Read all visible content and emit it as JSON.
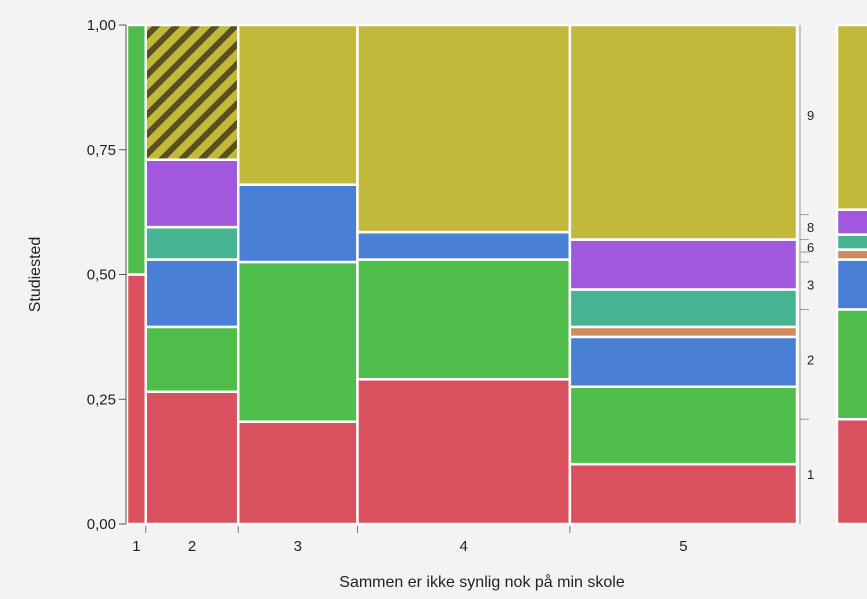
{
  "chart_data": {
    "type": "mosaic",
    "xlabel": "Sammen er ikke synlig nok på min skole",
    "ylabel": "Studiested",
    "ylim": [
      0,
      1
    ],
    "y_ticks": [
      {
        "value": 0,
        "label": "0,00"
      },
      {
        "value": 0.25,
        "label": "0,25"
      },
      {
        "value": 0.5,
        "label": "0,50"
      },
      {
        "value": 0.75,
        "label": "0,75"
      },
      {
        "value": 1,
        "label": "1,00"
      }
    ],
    "colors": {
      "1": "#d9515f",
      "2": "#4fbd4b",
      "3": "#4a7fd6",
      "4": "#cf8a5c",
      "6": "#46b393",
      "8": "#a258dc",
      "9": "#c2b83a",
      "hatch": "#574f1f"
    },
    "columns": [
      {
        "label": "1",
        "width": 0.028,
        "segments": [
          {
            "group": "1",
            "value": 0.5
          },
          {
            "group": "2",
            "value": 0.5
          }
        ]
      },
      {
        "label": "2",
        "width": 0.138,
        "segments": [
          {
            "group": "1",
            "value": 0.265
          },
          {
            "group": "2",
            "value": 0.13
          },
          {
            "group": "3",
            "value": 0.135
          },
          {
            "group": "6",
            "value": 0.065
          },
          {
            "group": "8",
            "value": 0.135
          },
          {
            "group": "9",
            "value": 0.27,
            "hatched": true
          }
        ]
      },
      {
        "label": "3",
        "width": 0.178,
        "segments": [
          {
            "group": "1",
            "value": 0.205
          },
          {
            "group": "2",
            "value": 0.32
          },
          {
            "group": "3",
            "value": 0.155
          },
          {
            "group": "9",
            "value": 0.32
          }
        ]
      },
      {
        "label": "4",
        "width": 0.317,
        "segments": [
          {
            "group": "1",
            "value": 0.29
          },
          {
            "group": "2",
            "value": 0.24
          },
          {
            "group": "3",
            "value": 0.055
          },
          {
            "group": "9",
            "value": 0.415
          }
        ]
      },
      {
        "label": "5",
        "width": 0.339,
        "segments": [
          {
            "group": "1",
            "value": 0.12
          },
          {
            "group": "2",
            "value": 0.155
          },
          {
            "group": "3",
            "value": 0.1
          },
          {
            "group": "4",
            "value": 0.02
          },
          {
            "group": "6",
            "value": 0.075
          },
          {
            "group": "8",
            "value": 0.1
          },
          {
            "group": "9",
            "value": 0.43
          }
        ]
      }
    ],
    "right_axis_labels": [
      {
        "label": "1",
        "value": 0.1
      },
      {
        "label": "2",
        "value": 0.33
      },
      {
        "label": "3",
        "value": 0.48
      },
      {
        "label": "6",
        "value": 0.555
      },
      {
        "label": "8",
        "value": 0.595
      },
      {
        "label": "9",
        "value": 0.82
      }
    ],
    "right_axis_ticks": [
      0.21,
      0.43,
      0.525,
      0.545,
      0.57,
      0.62
    ],
    "overall_bar": [
      {
        "group": "1",
        "value": 0.21
      },
      {
        "group": "2",
        "value": 0.22
      },
      {
        "group": "3",
        "value": 0.1
      },
      {
        "group": "4",
        "value": 0.02
      },
      {
        "group": "6",
        "value": 0.03
      },
      {
        "group": "8",
        "value": 0.05
      },
      {
        "group": "9",
        "value": 0.37
      }
    ]
  }
}
